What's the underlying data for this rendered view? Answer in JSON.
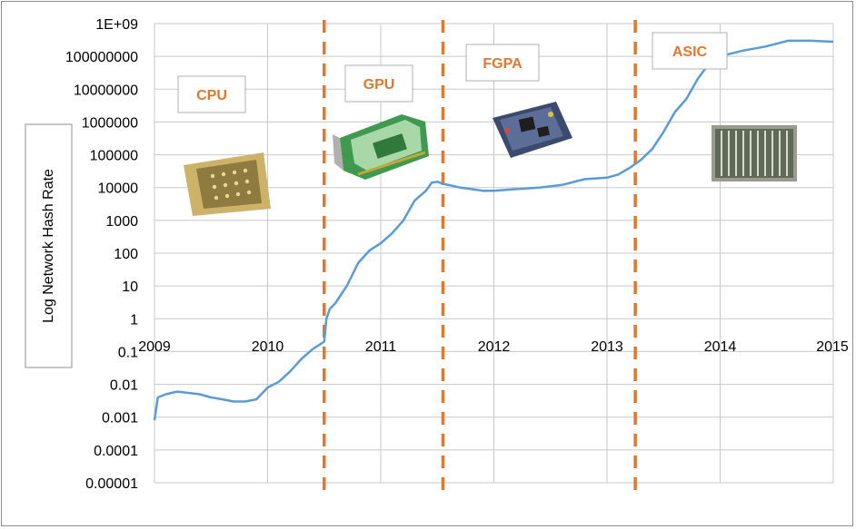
{
  "chart_data": {
    "type": "line",
    "ylabel": "Log Network Hash Rate",
    "yscale": "log",
    "ylim": [
      1e-05,
      1000000000
    ],
    "ytick_labels": [
      "1E+09",
      "100000000",
      "10000000",
      "1000000",
      "100000",
      "10000",
      "1000",
      "100",
      "10",
      "1",
      "0.1",
      "0.01",
      "0.001",
      "0.0001",
      "0.00001"
    ],
    "xlim": [
      2009,
      2015
    ],
    "xtick_labels": [
      "2009",
      "2010",
      "2011",
      "2012",
      "2013",
      "2014",
      "2015"
    ],
    "grid": true,
    "line_color": "#5b9bd5",
    "divider_color": "#e0782f",
    "eras": [
      {
        "label": "CPU",
        "image": "cpu-chip-photo"
      },
      {
        "label": "GPU",
        "image": "graphics-card-photo"
      },
      {
        "label": "FGPA",
        "image": "fpga-board-photo"
      },
      {
        "label": "ASIC",
        "image": "asic-rack-photo"
      }
    ],
    "era_boundaries": [
      2010.5,
      2011.55,
      2013.25
    ],
    "series": [
      {
        "x": [
          2009.0,
          2009.03,
          2009.1,
          2009.2,
          2009.3,
          2009.4,
          2009.5,
          2009.6,
          2009.7,
          2009.8,
          2009.9,
          2010.0,
          2010.1,
          2010.2,
          2010.3,
          2010.4,
          2010.5,
          2010.52,
          2010.55,
          2010.6,
          2010.7,
          2010.8,
          2010.9,
          2011.0,
          2011.1,
          2011.2,
          2011.3,
          2011.4,
          2011.45,
          2011.5,
          2011.55,
          2011.6,
          2011.7,
          2011.8,
          2011.9,
          2012.0,
          2012.2,
          2012.4,
          2012.6,
          2012.8,
          2013.0,
          2013.1,
          2013.2,
          2013.3,
          2013.4,
          2013.5,
          2013.6,
          2013.7,
          2013.8,
          2013.9,
          2014.0,
          2014.2,
          2014.4,
          2014.6,
          2014.8,
          2015.0
        ],
        "y": [
          0.0008,
          0.004,
          0.005,
          0.006,
          0.0055,
          0.005,
          0.004,
          0.0035,
          0.003,
          0.003,
          0.0035,
          0.008,
          0.012,
          0.025,
          0.06,
          0.12,
          0.2,
          1.0,
          2.0,
          3.0,
          10,
          50,
          120,
          200,
          400,
          1000,
          4000,
          8000,
          14000,
          15000,
          13000,
          12000,
          10000,
          9000,
          8000,
          8000,
          9000,
          10000,
          12000,
          18000,
          20000,
          25000,
          40000,
          70000,
          150000,
          500000,
          2000000,
          5000000,
          20000000,
          60000000,
          100000000,
          150000000,
          200000000,
          300000000,
          300000000,
          280000000
        ]
      }
    ]
  }
}
